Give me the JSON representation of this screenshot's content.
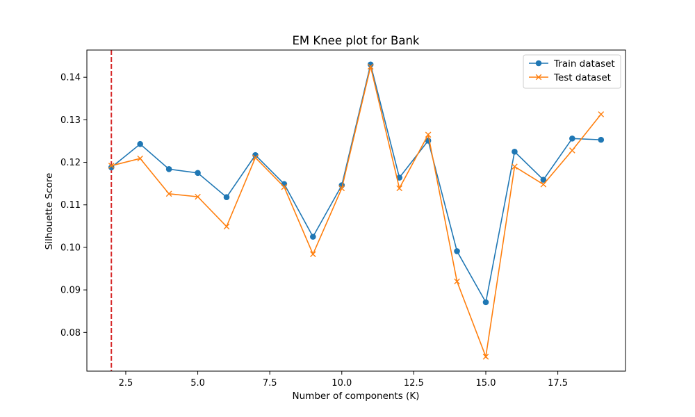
{
  "chart_data": {
    "type": "line",
    "title": "EM Knee plot for Bank",
    "xlabel": "Number of components (K)",
    "ylabel": "Silhouette Score",
    "xlim": [
      1.15,
      19.85
    ],
    "ylim": [
      0.0709,
      0.1464
    ],
    "xticks": [
      2.5,
      5.0,
      7.5,
      10.0,
      12.5,
      15.0,
      17.5
    ],
    "xtick_labels": [
      "2.5",
      "5.0",
      "7.5",
      "10.0",
      "12.5",
      "15.0",
      "17.5"
    ],
    "yticks": [
      0.08,
      0.09,
      0.1,
      0.11,
      0.12,
      0.13,
      0.14
    ],
    "ytick_labels": [
      "0.08",
      "0.09",
      "0.10",
      "0.11",
      "0.12",
      "0.13",
      "0.14"
    ],
    "grid": false,
    "legend_position": "top-right",
    "x": [
      2,
      3,
      4,
      5,
      6,
      7,
      8,
      9,
      10,
      11,
      12,
      13,
      14,
      15,
      16,
      17,
      18,
      19
    ],
    "series": [
      {
        "name": "Train dataset",
        "color": "#1f77b4",
        "marker": "circle",
        "values": [
          0.1188,
          0.1243,
          0.1184,
          0.1175,
          0.1118,
          0.1217,
          0.1149,
          0.1025,
          0.1146,
          0.143,
          0.1164,
          0.1251,
          0.0991,
          0.0871,
          0.1225,
          0.1159,
          0.1256,
          0.1253
        ]
      },
      {
        "name": "Test dataset",
        "color": "#ff7f0e",
        "marker": "x",
        "values": [
          0.1192,
          0.1209,
          0.1126,
          0.1119,
          0.1049,
          0.1211,
          0.1142,
          0.0984,
          0.1139,
          0.1425,
          0.1139,
          0.1265,
          0.092,
          0.0743,
          0.119,
          0.1148,
          0.1228,
          0.1313
        ]
      }
    ],
    "vline": {
      "x": 2,
      "color": "#d62728",
      "style": "dashed"
    }
  }
}
